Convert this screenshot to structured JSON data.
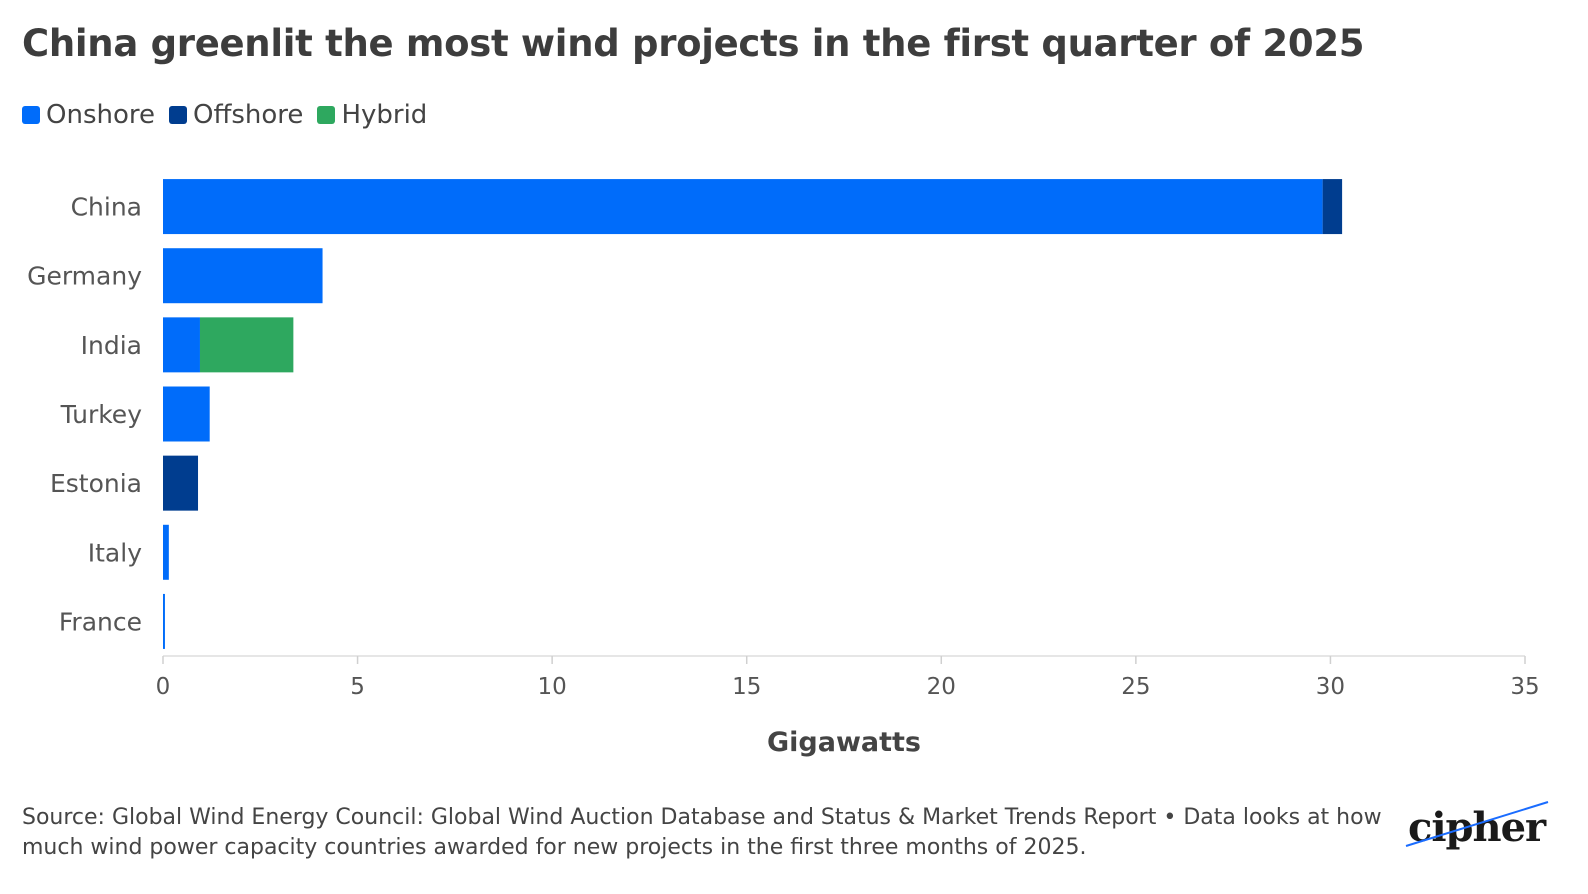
{
  "chart_data": {
    "type": "bar",
    "orientation": "horizontal",
    "stacked": true,
    "title": "China greenlit the most wind projects in the first quarter of 2025",
    "xlabel": "Gigawatts",
    "ylabel": "",
    "xlim": [
      0,
      35
    ],
    "xticks": [
      0,
      5,
      10,
      15,
      20,
      25,
      30,
      35
    ],
    "grid": false,
    "legend_position": "top-left",
    "categories": [
      "China",
      "Germany",
      "India",
      "Turkey",
      "Estonia",
      "Italy",
      "France"
    ],
    "series": [
      {
        "name": "Onshore",
        "color": "#006cfa",
        "values": [
          29.8,
          4.1,
          0.95,
          1.2,
          0,
          0.15,
          0.05
        ]
      },
      {
        "name": "Offshore",
        "color": "#003d8f",
        "values": [
          0.5,
          0,
          0,
          0,
          0.9,
          0,
          0
        ]
      },
      {
        "name": "Hybrid",
        "color": "#2ea85f",
        "values": [
          0,
          0,
          2.4,
          0,
          0,
          0,
          0
        ]
      }
    ]
  },
  "source_text": "Source: Global Wind Energy Council: Global Wind Auction Database and Status & Market Trends Report • Data looks at how much wind power capacity countries awarded for new projects in the first three months of 2025.",
  "logo": {
    "text": "cipher",
    "icon": "cipher-logo"
  }
}
